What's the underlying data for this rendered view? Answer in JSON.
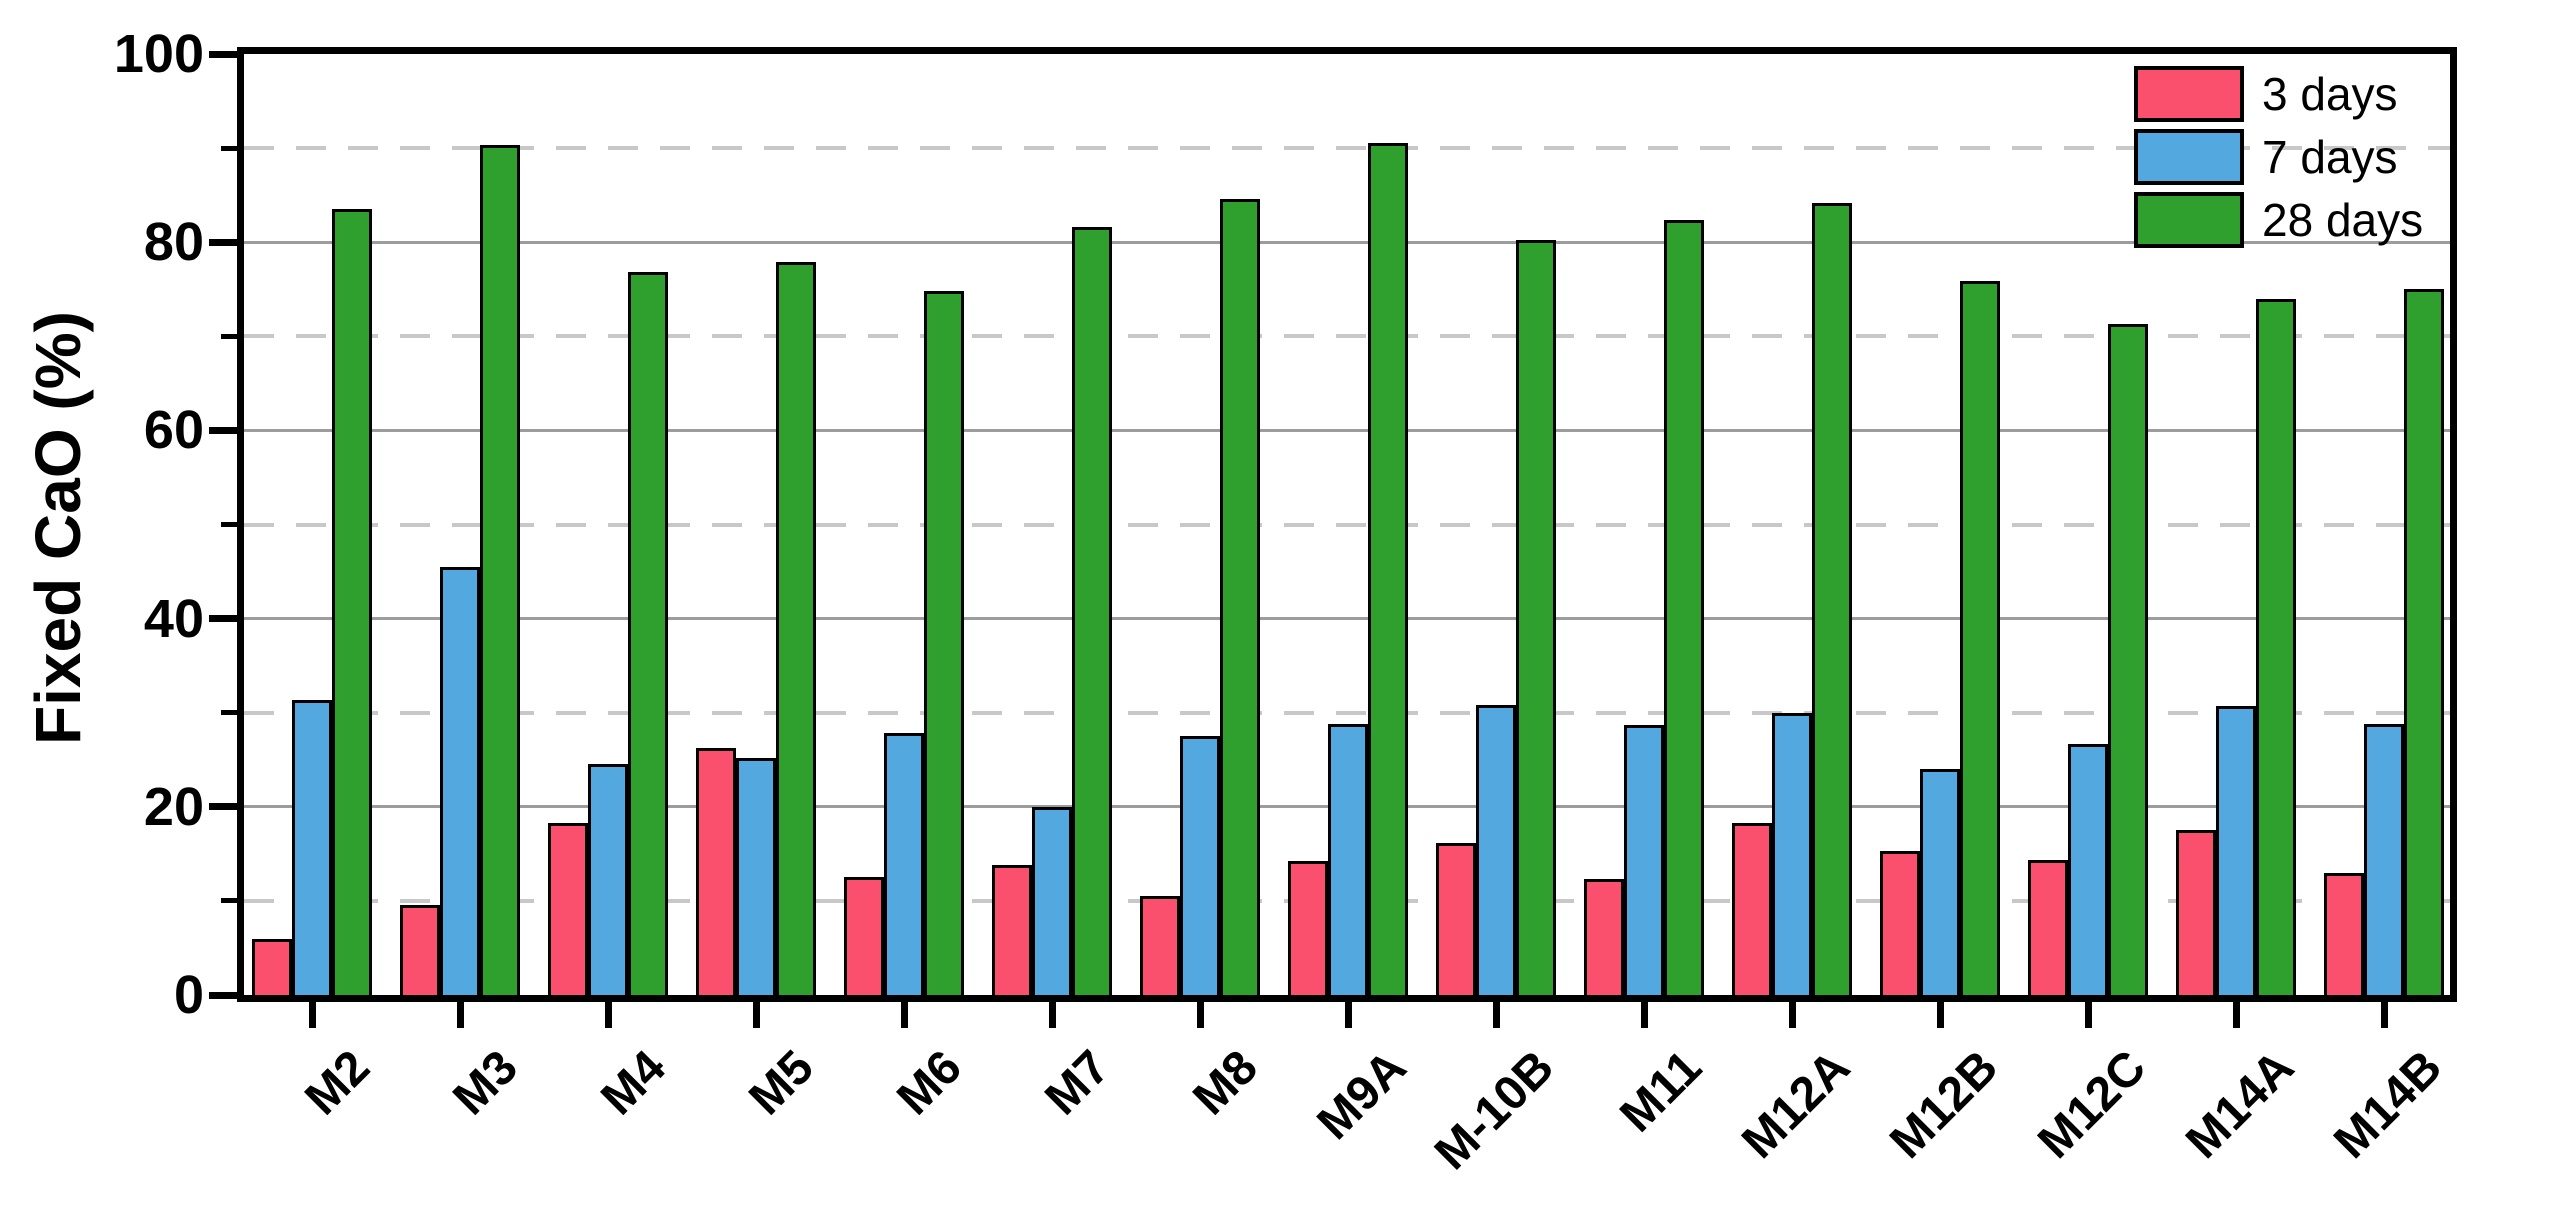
{
  "chart_data": {
    "type": "bar",
    "title": "",
    "xlabel": "",
    "ylabel": "Fixed CaO (%)",
    "ylim": [
      0,
      100
    ],
    "yticks_major": [
      0,
      20,
      40,
      60,
      80,
      100
    ],
    "yticks_minor": [
      10,
      30,
      50,
      70,
      90
    ],
    "grid": {
      "solid_at": [
        20,
        40,
        60,
        80
      ],
      "dashed_at": [
        10,
        30,
        50,
        70,
        90
      ]
    },
    "legend_position": "top-right-inside",
    "categories": [
      "M2",
      "M3",
      "M4",
      "M5",
      "M6",
      "M7",
      "M8",
      "M9A",
      "M-10B",
      "M11",
      "M12A",
      "M12B",
      "M12C",
      "M14A",
      "M14B"
    ],
    "series": [
      {
        "name": "3 days",
        "color": "#FA506E",
        "values": [
          6.0,
          9.6,
          18.3,
          26.3,
          12.5,
          13.8,
          10.5,
          14.2,
          16.2,
          12.3,
          18.3,
          15.3,
          14.3,
          17.5,
          13.0
        ]
      },
      {
        "name": "7 days",
        "color": "#54A8E0",
        "values": [
          31.4,
          45.5,
          24.5,
          25.2,
          27.8,
          20.0,
          27.5,
          28.8,
          30.8,
          28.7,
          30.0,
          24.0,
          26.7,
          30.7,
          28.8
        ]
      },
      {
        "name": "28 days",
        "color": "#2FA02D",
        "values": [
          83.5,
          90.3,
          76.8,
          77.9,
          74.8,
          81.6,
          84.6,
          90.5,
          80.2,
          82.4,
          84.2,
          75.9,
          71.3,
          74.0,
          75.0
        ]
      }
    ],
    "style": {
      "axis_color": "#000000",
      "grid_solid_color": "#9c9c9c",
      "grid_dashed_color": "#c8c8c8",
      "bar_outline_color": "#000000",
      "background_color": "#ffffff"
    }
  }
}
